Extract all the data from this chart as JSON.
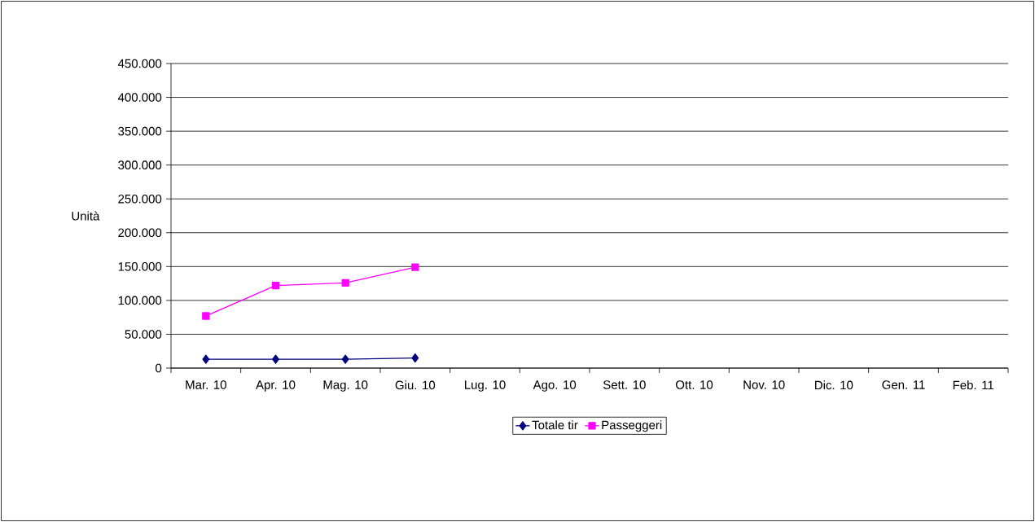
{
  "chart_data": {
    "type": "line",
    "ylabel": "Unità",
    "categories": [
      "Mar. 10",
      "Apr. 10",
      "Mag. 10",
      "Giu. 10",
      "Lug. 10",
      "Ago. 10",
      "Sett. 10",
      "Ott. 10",
      "Nov. 10",
      "Dic. 10",
      "Gen. 11",
      "Feb. 11"
    ],
    "series": [
      {
        "name": "Totale tir",
        "color": "#000080",
        "marker": "diamond",
        "values": [
          13000,
          13000,
          13000,
          15000,
          null,
          null,
          null,
          null,
          null,
          null,
          null,
          null
        ]
      },
      {
        "name": "Passeggeri",
        "color": "#ff00ff",
        "marker": "square",
        "values": [
          77000,
          122000,
          126000,
          149000,
          null,
          null,
          null,
          null,
          null,
          null,
          null,
          null
        ]
      }
    ],
    "ylim": [
      0,
      450000
    ],
    "yticks": [
      0,
      {
        "value": 50000,
        "label": "50.000"
      },
      {
        "value": 100000,
        "label": "100.000"
      },
      {
        "value": 150000,
        "label": "150.000"
      },
      {
        "value": 200000,
        "label": "200.000"
      },
      {
        "value": 250000,
        "label": "250.000"
      },
      {
        "value": 300000,
        "label": "300.000"
      },
      {
        "value": 350000,
        "label": "350.000"
      },
      {
        "value": 400000,
        "label": "400.000"
      },
      {
        "value": 450000,
        "label": "450.000"
      }
    ],
    "grid": "y",
    "legend": "bottom"
  }
}
